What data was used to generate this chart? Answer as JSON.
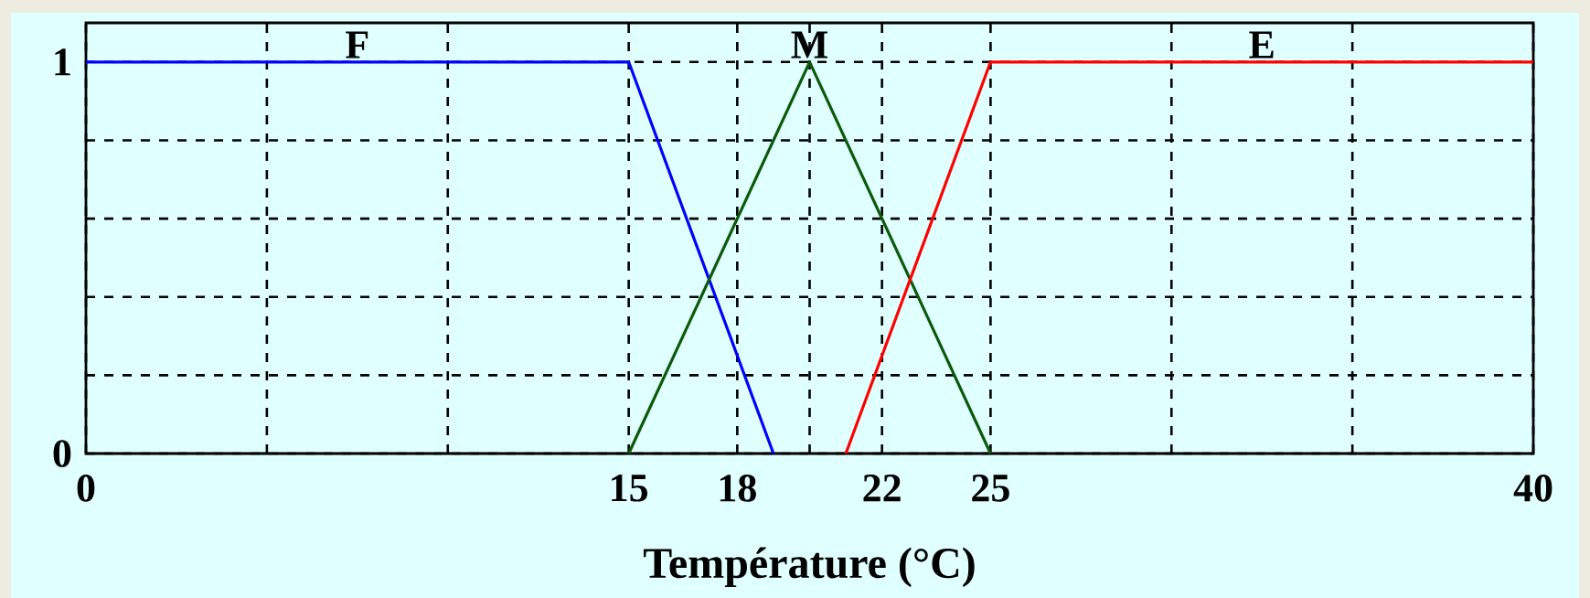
{
  "chart_data": {
    "type": "line",
    "xlabel": "Température (°C)",
    "xlim": [
      0,
      40
    ],
    "ylim": [
      0,
      1.1
    ],
    "xticks": [
      0,
      {
        "value": 5,
        "label": null
      },
      {
        "value": 10,
        "label": null
      },
      15,
      18,
      {
        "value": 20,
        "label": null
      },
      22,
      25,
      {
        "value": 30,
        "label": null
      },
      {
        "value": 35,
        "label": null
      },
      40
    ],
    "yticks": [
      0,
      {
        "value": 0.2,
        "label": null
      },
      {
        "value": 0.4,
        "label": null
      },
      {
        "value": 0.6,
        "label": null
      },
      {
        "value": 0.8,
        "label": null
      },
      1
    ],
    "grid": true,
    "series": [
      {
        "name": "F",
        "color": "#0000ff",
        "x": [
          0,
          15,
          19
        ],
        "values": [
          1,
          1,
          0
        ]
      },
      {
        "name": "M",
        "color": "#0a5a0a",
        "x": [
          15,
          20,
          25
        ],
        "values": [
          0,
          1,
          0
        ]
      },
      {
        "name": "E",
        "color": "#ff0000",
        "x": [
          21,
          25,
          40
        ],
        "values": [
          0,
          1,
          1
        ]
      }
    ]
  }
}
